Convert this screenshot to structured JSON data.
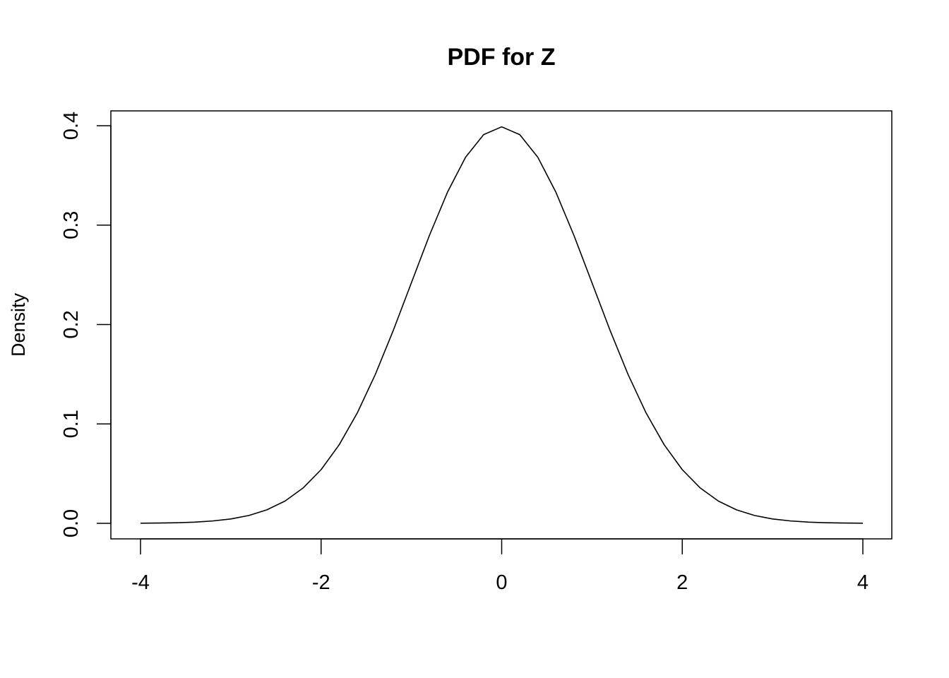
{
  "chart_data": {
    "type": "line",
    "title": "PDF for Z",
    "xlabel": "",
    "ylabel": "Density",
    "xlim": [
      -4,
      4
    ],
    "ylim": [
      0,
      0.4
    ],
    "x_ticks": [
      "-4",
      "-2",
      "0",
      "2",
      "4"
    ],
    "y_ticks": [
      "0.0",
      "0.1",
      "0.2",
      "0.3",
      "0.4"
    ],
    "grid": false,
    "legend": "none",
    "line_color": "#000000",
    "series": [
      {
        "x": [
          -4.0,
          -3.8,
          -3.6,
          -3.4,
          -3.2,
          -3.0,
          -2.8,
          -2.6,
          -2.4,
          -2.2,
          -2.0,
          -1.8,
          -1.6,
          -1.4,
          -1.2,
          -1.0,
          -0.8,
          -0.6,
          -0.4,
          -0.2,
          0.0,
          0.2,
          0.4,
          0.6,
          0.8,
          1.0,
          1.2,
          1.4,
          1.6,
          1.8,
          2.0,
          2.2,
          2.4,
          2.6,
          2.8,
          3.0,
          3.2,
          3.4,
          3.6,
          3.8,
          4.0
        ],
        "values": [
          0.0001,
          0.0003,
          0.0006,
          0.0012,
          0.0024,
          0.0044,
          0.0079,
          0.0136,
          0.0224,
          0.0355,
          0.054,
          0.079,
          0.1109,
          0.1497,
          0.1942,
          0.242,
          0.2897,
          0.3332,
          0.3683,
          0.391,
          0.3989,
          0.391,
          0.3683,
          0.3332,
          0.2897,
          0.242,
          0.1942,
          0.1497,
          0.1109,
          0.079,
          0.054,
          0.0355,
          0.0224,
          0.0136,
          0.0079,
          0.0044,
          0.0024,
          0.0012,
          0.0006,
          0.0003,
          0.0001
        ]
      }
    ]
  }
}
